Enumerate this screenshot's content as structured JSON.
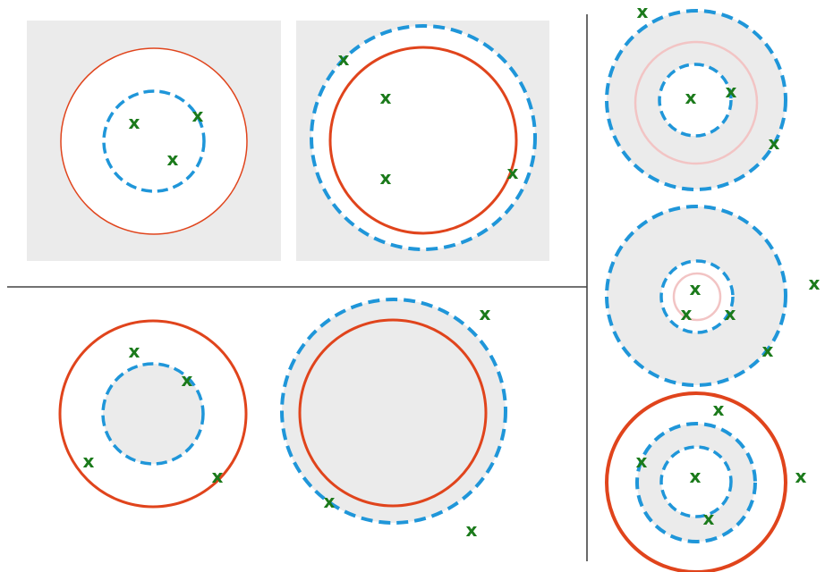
{
  "marker": {
    "text": "x"
  },
  "colors": {
    "background": "#ffffff",
    "region_fill": "#ebebeb",
    "red_circle": "#e0441c",
    "faint_red_circle": "#f2c4c4",
    "blue_dashed": "#1f96d9",
    "marker": "#1b7a1b",
    "divider": "#444444"
  },
  "panels": [
    {
      "id": "panel-top-left",
      "markers": 3
    },
    {
      "id": "panel-top-middle",
      "markers": 4
    },
    {
      "id": "panel-bottom-left",
      "markers": 4
    },
    {
      "id": "panel-bottom-middle",
      "markers": 3
    },
    {
      "id": "panel-right-top",
      "markers": 4
    },
    {
      "id": "panel-right-middle",
      "markers": 5
    },
    {
      "id": "panel-right-bottom",
      "markers": 5
    }
  ]
}
